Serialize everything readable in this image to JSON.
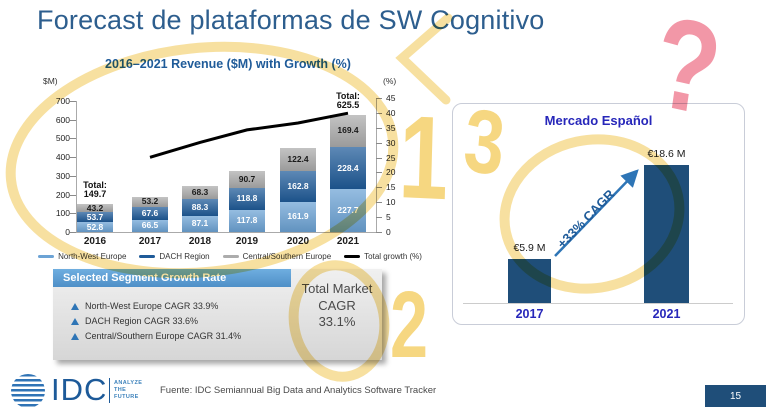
{
  "slide_title": "Forecast de plataformas de SW Cognitivo",
  "chart_data": [
    {
      "type": "bar",
      "subtype": "stacked-bars-with-growth-line",
      "title": "2016–2021 Revenue ($M) with Growth (%)",
      "left_axis_label": "$M)",
      "right_axis_label": "(%)",
      "categories": [
        "2016",
        "2017",
        "2018",
        "2019",
        "2020",
        "2021"
      ],
      "series": [
        {
          "name": "North-West Europe",
          "color": "#6CA3D5",
          "text_color": "#FFFFFF",
          "values": [
            52.8,
            66.5,
            87.1,
            117.8,
            161.9,
            227.7
          ]
        },
        {
          "name": "DACH Region",
          "color": "#1F5B99",
          "text_color": "#FFFFFF",
          "values": [
            53.7,
            67.6,
            88.3,
            118.8,
            162.8,
            228.4
          ]
        },
        {
          "name": "Central/Southern Europe",
          "color": "#ACACAC",
          "text_color": "#1A1A1A",
          "values": [
            43.2,
            53.2,
            68.3,
            90.7,
            122.4,
            169.4
          ]
        }
      ],
      "line": {
        "name": "Total growth (%)",
        "color": "#000000",
        "categories": [
          "2017",
          "2018",
          "2019",
          "2020",
          "2021"
        ],
        "values": [
          25.1,
          30.1,
          34.3,
          36.6,
          39.9
        ]
      },
      "total_labels": [
        {
          "category": "2016",
          "text": "Total:\n149.7"
        },
        {
          "category": "2021",
          "text": "Total:\n625.5"
        }
      ],
      "ylim": [
        0,
        700
      ],
      "y2lim": [
        0,
        45
      ],
      "left_ticks": [
        0,
        100,
        200,
        300,
        400,
        500,
        600,
        700
      ],
      "right_ticks": [
        0,
        5,
        10,
        15,
        20,
        25,
        30,
        35,
        40,
        45
      ],
      "grid": false,
      "legend_position": "bottom"
    },
    {
      "type": "bar",
      "title": "Mercado Español",
      "categories": [
        "2017",
        "2021"
      ],
      "values": [
        5.9,
        18.6
      ],
      "value_labels": [
        "€5.9 M",
        "€18.6 M"
      ],
      "bar_color": "#1F4E79",
      "cagr_label": "+33% CAGR",
      "cagr_color": "#2E75B6"
    }
  ],
  "growth_box": {
    "header": "Selected Segment Growth Rate",
    "items": [
      {
        "label": "North-West Europe CAGR 33.9%"
      },
      {
        "label": "DACH Region CAGR 33.6%"
      },
      {
        "label": "Central/Southern Europe CAGR 31.4%"
      }
    ],
    "total_label": "Total Market CAGR 33.1%"
  },
  "footer": {
    "logo_text": "IDC",
    "logo_tagline": "ANALYZE\nTHE\nFUTURE",
    "source": "Fuente: IDC Semiannual Big Data and Analytics Software Tracker",
    "page_number": "15"
  },
  "annotations": {
    "digit_1": "1",
    "digit_2": "2",
    "digit_3": "3",
    "question_mark": "?",
    "marker_yellow": "#F2C64B",
    "marker_pink": "#EF7D91"
  }
}
